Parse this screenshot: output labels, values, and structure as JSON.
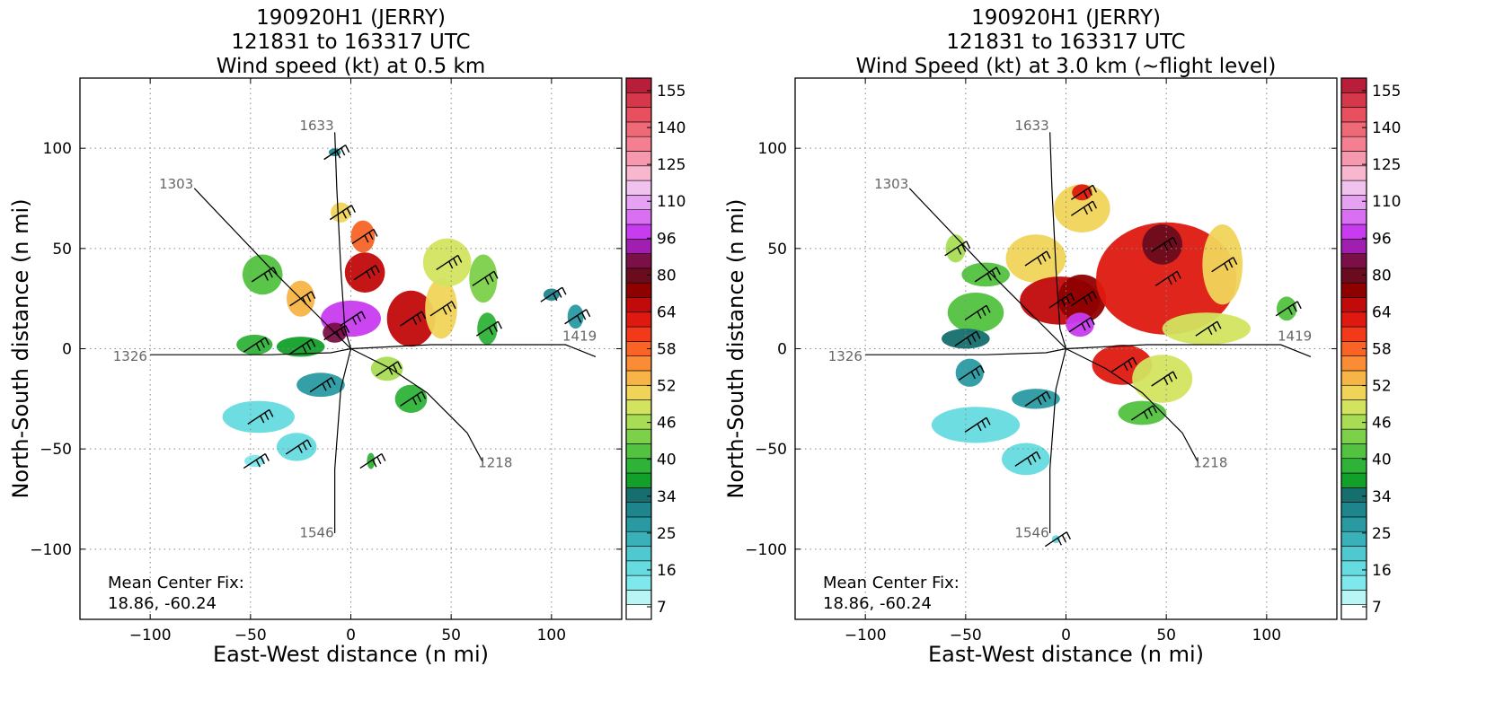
{
  "chart_data": [
    {
      "type": "heatmap",
      "title_lines": [
        "190920H1 (JERRY)",
        "121831 to 163317 UTC",
        "Wind speed (kt) at 0.5 km"
      ],
      "xlabel": "East-West distance (n mi)",
      "ylabel": "North-South distance (n mi)",
      "xlim": [
        -135,
        135
      ],
      "ylim": [
        -135,
        135
      ],
      "x_ticks": [
        -100,
        -50,
        0,
        50,
        100
      ],
      "y_ticks": [
        -100,
        -50,
        0,
        50,
        100
      ],
      "grid": true,
      "annotation": [
        "Mean Center Fix:",
        "18.86, -60.24"
      ],
      "track_labels": [
        {
          "text": "1633",
          "x": -17,
          "y": 109
        },
        {
          "text": "1303",
          "x": -87,
          "y": 80
        },
        {
          "text": "1326",
          "x": -110,
          "y": -6
        },
        {
          "text": "1419",
          "x": 114,
          "y": 4
        },
        {
          "text": "1218",
          "x": 72,
          "y": -59
        },
        {
          "text": "1546",
          "x": -17,
          "y": -94
        }
      ],
      "wind_regions": [
        {
          "x": -44,
          "y": 37,
          "rx": 10,
          "ry": 10,
          "value": 38
        },
        {
          "x": -25,
          "y": 25,
          "rx": 7,
          "ry": 9,
          "value": 48
        },
        {
          "x": -8,
          "y": 98,
          "rx": 3,
          "ry": 2,
          "value": 30
        },
        {
          "x": -5,
          "y": 68,
          "rx": 5,
          "ry": 5,
          "value": 46
        },
        {
          "x": 6,
          "y": 56,
          "rx": 6,
          "ry": 8,
          "value": 52
        },
        {
          "x": 7,
          "y": 38,
          "rx": 10,
          "ry": 10,
          "value": 58
        },
        {
          "x": 0,
          "y": 15,
          "rx": 15,
          "ry": 9,
          "value": 80
        },
        {
          "x": -8,
          "y": 8,
          "rx": 6,
          "ry": 5,
          "value": 64
        },
        {
          "x": 30,
          "y": 15,
          "rx": 12,
          "ry": 14,
          "value": 58
        },
        {
          "x": 45,
          "y": 20,
          "rx": 8,
          "ry": 15,
          "value": 46
        },
        {
          "x": 48,
          "y": 43,
          "rx": 12,
          "ry": 12,
          "value": 44
        },
        {
          "x": 66,
          "y": 35,
          "rx": 7,
          "ry": 12,
          "value": 40
        },
        {
          "x": 68,
          "y": 10,
          "rx": 5,
          "ry": 8,
          "value": 36
        },
        {
          "x": 100,
          "y": 27,
          "rx": 4,
          "ry": 3,
          "value": 28
        },
        {
          "x": 112,
          "y": 16,
          "rx": 4,
          "ry": 6,
          "value": 27
        },
        {
          "x": -48,
          "y": 2,
          "rx": 9,
          "ry": 5,
          "value": 36
        },
        {
          "x": -25,
          "y": 1,
          "rx": 12,
          "ry": 5,
          "value": 34
        },
        {
          "x": 18,
          "y": -10,
          "rx": 8,
          "ry": 6,
          "value": 42
        },
        {
          "x": 30,
          "y": -25,
          "rx": 8,
          "ry": 7,
          "value": 36
        },
        {
          "x": -15,
          "y": -18,
          "rx": 12,
          "ry": 6,
          "value": 26
        },
        {
          "x": -46,
          "y": -34,
          "rx": 18,
          "ry": 8,
          "value": 18
        },
        {
          "x": -27,
          "y": -49,
          "rx": 10,
          "ry": 7,
          "value": 17
        },
        {
          "x": -48,
          "y": -56,
          "rx": 5,
          "ry": 3,
          "value": 14
        },
        {
          "x": 10,
          "y": -56,
          "rx": 2,
          "ry": 4,
          "value": 36
        }
      ],
      "colorbar_ticks": [
        "155",
        "140",
        "125",
        "110",
        "96",
        "80",
        "64",
        "58",
        "52",
        "46",
        "40",
        "34",
        "25",
        "16",
        "7"
      ]
    },
    {
      "type": "heatmap",
      "title_lines": [
        "190920H1 (JERRY)",
        "121831 to 163317 UTC",
        "Wind Speed (kt) at 3.0 km (~flight level)"
      ],
      "xlabel": "East-West distance (n mi)",
      "ylabel": "North-South distance (n mi)",
      "xlim": [
        -135,
        135
      ],
      "ylim": [
        -135,
        135
      ],
      "x_ticks": [
        -100,
        -50,
        0,
        50,
        100
      ],
      "y_ticks": [
        -100,
        -50,
        0,
        50,
        100
      ],
      "grid": true,
      "annotation": [
        "Mean Center Fix:",
        "18.86, -60.24"
      ],
      "track_labels": [
        {
          "text": "1633",
          "x": -17,
          "y": 109
        },
        {
          "text": "1303",
          "x": -87,
          "y": 80
        },
        {
          "text": "1326",
          "x": -110,
          "y": -6
        },
        {
          "text": "1419",
          "x": 114,
          "y": 4
        },
        {
          "text": "1218",
          "x": 72,
          "y": -59
        },
        {
          "text": "1546",
          "x": -17,
          "y": -94
        }
      ],
      "wind_regions": [
        {
          "x": -55,
          "y": 50,
          "rx": 5,
          "ry": 7,
          "value": 42
        },
        {
          "x": -40,
          "y": 37,
          "rx": 12,
          "ry": 6,
          "value": 38
        },
        {
          "x": -45,
          "y": 18,
          "rx": 14,
          "ry": 10,
          "value": 38
        },
        {
          "x": -15,
          "y": 45,
          "rx": 15,
          "ry": 12,
          "value": 46
        },
        {
          "x": 8,
          "y": 70,
          "rx": 14,
          "ry": 12,
          "value": 46
        },
        {
          "x": 8,
          "y": 78,
          "rx": 5,
          "ry": 4,
          "value": 56
        },
        {
          "x": -3,
          "y": 24,
          "rx": 20,
          "ry": 12,
          "value": 58
        },
        {
          "x": 8,
          "y": 25,
          "rx": 12,
          "ry": 12,
          "value": 60
        },
        {
          "x": 50,
          "y": 35,
          "rx": 35,
          "ry": 28,
          "value": 56
        },
        {
          "x": 48,
          "y": 52,
          "rx": 10,
          "ry": 10,
          "value": 62
        },
        {
          "x": 78,
          "y": 42,
          "rx": 10,
          "ry": 20,
          "value": 46
        },
        {
          "x": 70,
          "y": 10,
          "rx": 22,
          "ry": 8,
          "value": 44
        },
        {
          "x": 28,
          "y": -8,
          "rx": 15,
          "ry": 10,
          "value": 56
        },
        {
          "x": 48,
          "y": -15,
          "rx": 15,
          "ry": 12,
          "value": 44
        },
        {
          "x": 38,
          "y": -32,
          "rx": 12,
          "ry": 6,
          "value": 38
        },
        {
          "x": 7,
          "y": 12,
          "rx": 7,
          "ry": 6,
          "value": 80
        },
        {
          "x": 110,
          "y": 20,
          "rx": 5,
          "ry": 6,
          "value": 38
        },
        {
          "x": -50,
          "y": 5,
          "rx": 12,
          "ry": 5,
          "value": 32
        },
        {
          "x": -48,
          "y": -12,
          "rx": 7,
          "ry": 7,
          "value": 26
        },
        {
          "x": -15,
          "y": -25,
          "rx": 12,
          "ry": 5,
          "value": 26
        },
        {
          "x": -45,
          "y": -38,
          "rx": 22,
          "ry": 9,
          "value": 18
        },
        {
          "x": -20,
          "y": -55,
          "rx": 12,
          "ry": 8,
          "value": 18
        },
        {
          "x": -5,
          "y": -95,
          "rx": 2,
          "ry": 2,
          "value": 18
        }
      ],
      "colorbar_ticks": [
        "155",
        "140",
        "125",
        "110",
        "96",
        "80",
        "64",
        "58",
        "52",
        "46",
        "40",
        "34",
        "25",
        "16",
        "7"
      ]
    }
  ],
  "colors": {
    "grid": "#888888",
    "track": "#000000",
    "track_label": "#666666",
    "background": "#ffffff"
  }
}
